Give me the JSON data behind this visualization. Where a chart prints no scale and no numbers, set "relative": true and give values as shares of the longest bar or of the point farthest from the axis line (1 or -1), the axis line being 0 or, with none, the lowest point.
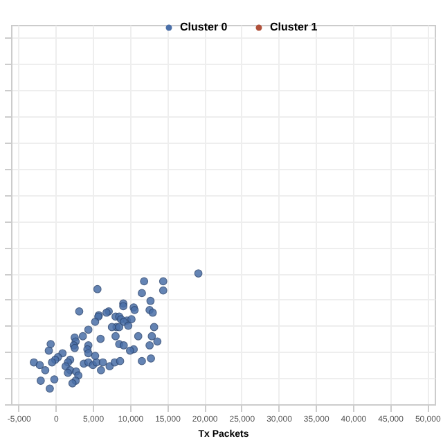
{
  "chart_data": {
    "type": "scatter",
    "xlabel": "Tx Packets",
    "relative": true,
    "grid": true,
    "legend": "top",
    "marker": "circle",
    "tick_labels": "x",
    "xlim": [
      -6000,
      51000
    ],
    "xticks": [
      {
        "value": -5000,
        "label": "-5,000"
      },
      0,
      {
        "value": 5000,
        "label": "5,000"
      },
      {
        "value": 10000,
        "label": "10,000"
      },
      {
        "value": 15000,
        "label": "15,000"
      },
      {
        "value": 20000,
        "label": "20,000"
      },
      {
        "value": 25000,
        "label": "25,000"
      },
      {
        "value": 30000,
        "label": "30,000"
      },
      {
        "value": 35000,
        "label": "35,000"
      },
      {
        "value": 40000,
        "label": "40,000"
      },
      {
        "value": 45000,
        "label": "45,000"
      },
      {
        "value": 50000,
        "label": "50,000"
      }
    ],
    "series": [
      {
        "name": "Cluster 0",
        "color": "#4a6fa8",
        "x": [
          19200,
          11900,
          14470,
          14470,
          11600,
          5620,
          3170,
          12760,
          9100,
          9100,
          10500,
          10620,
          12640,
          13060,
          7140,
          6840,
          5800,
          5740,
          5310,
          8060,
          8550,
          8790,
          9580,
          10200,
          9160,
          8180,
          7570,
          8550,
          9770,
          13250,
          4400,
          3660,
          2560,
          2690,
          2440,
          2560,
          4400,
          4270,
          6040,
          8060,
          8550,
          9160,
          11110,
          12940,
          13680,
          12640,
          10500,
          10010,
          -670,
          -920,
          920,
          310,
          -60,
          -490,
          -2930,
          -2140,
          -1400,
          -2010,
          -180,
          -790,
          1950,
          1650,
          1340,
          1950,
          1650,
          2750,
          3050,
          2690,
          2260,
          3790,
          4400,
          5010,
          5490,
          6350,
          6100,
          7260,
          7940,
          8670,
          11600,
          12820,
          5310,
          4400
        ],
        "values": [
          1.0,
          0.94,
          0.94,
          0.87,
          0.85,
          0.88,
          0.71,
          0.79,
          0.77,
          0.75,
          0.74,
          0.72,
          0.72,
          0.7,
          0.71,
          0.7,
          0.68,
          0.67,
          0.63,
          0.67,
          0.67,
          0.65,
          0.64,
          0.65,
          0.63,
          0.59,
          0.59,
          0.59,
          0.6,
          0.59,
          0.57,
          0.52,
          0.51,
          0.48,
          0.45,
          0.43,
          0.45,
          0.42,
          0.5,
          0.52,
          0.46,
          0.45,
          0.52,
          0.52,
          0.48,
          0.45,
          0.42,
          0.41,
          0.46,
          0.41,
          0.39,
          0.36,
          0.34,
          0.32,
          0.32,
          0.3,
          0.26,
          0.18,
          0.19,
          0.12,
          0.34,
          0.32,
          0.29,
          0.26,
          0.24,
          0.25,
          0.22,
          0.18,
          0.16,
          0.31,
          0.32,
          0.3,
          0.32,
          0.32,
          0.26,
          0.29,
          0.32,
          0.33,
          0.33,
          0.35,
          0.37,
          0.39
        ]
      },
      {
        "name": "Cluster 1",
        "color": "#b0503a"
      }
    ]
  }
}
